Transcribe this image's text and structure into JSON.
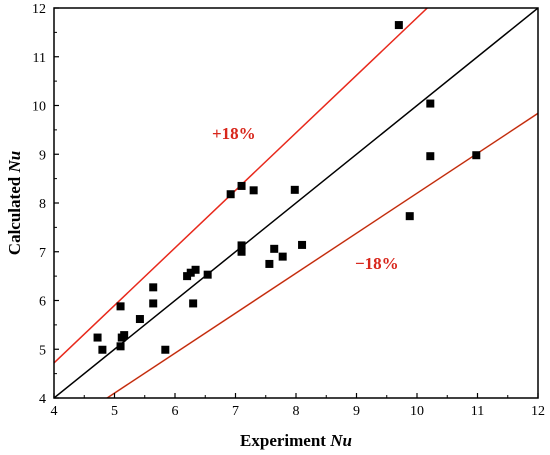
{
  "chart_data": {
    "type": "scatter",
    "xlabel": "Experiment",
    "xlabel_italic": "Nu",
    "ylabel": "Calculated",
    "ylabel_italic": "Nu",
    "xlim": [
      4,
      12
    ],
    "ylim": [
      4,
      12
    ],
    "xticks": [
      "4",
      "5",
      "6",
      "7",
      "8",
      "9",
      "10",
      "11",
      "12"
    ],
    "yticks": [
      "4",
      "5",
      "6",
      "7",
      "8",
      "9",
      "10",
      "11",
      "12"
    ],
    "grid": false,
    "points": [
      {
        "x": 4.72,
        "y": 5.24
      },
      {
        "x": 4.8,
        "y": 4.99
      },
      {
        "x": 5.1,
        "y": 5.88
      },
      {
        "x": 5.1,
        "y": 5.06
      },
      {
        "x": 5.12,
        "y": 5.24
      },
      {
        "x": 5.16,
        "y": 5.29
      },
      {
        "x": 5.42,
        "y": 5.62
      },
      {
        "x": 5.64,
        "y": 6.27
      },
      {
        "x": 5.64,
        "y": 5.94
      },
      {
        "x": 5.84,
        "y": 4.99
      },
      {
        "x": 6.2,
        "y": 6.5
      },
      {
        "x": 6.26,
        "y": 6.57
      },
      {
        "x": 6.3,
        "y": 5.94
      },
      {
        "x": 6.34,
        "y": 6.63
      },
      {
        "x": 6.54,
        "y": 6.53
      },
      {
        "x": 6.92,
        "y": 8.18
      },
      {
        "x": 7.1,
        "y": 8.35
      },
      {
        "x": 7.1,
        "y": 7.13
      },
      {
        "x": 7.1,
        "y": 7.0
      },
      {
        "x": 7.3,
        "y": 8.26
      },
      {
        "x": 7.56,
        "y": 6.75
      },
      {
        "x": 7.64,
        "y": 7.06
      },
      {
        "x": 7.78,
        "y": 6.9
      },
      {
        "x": 7.98,
        "y": 8.27
      },
      {
        "x": 8.1,
        "y": 7.14
      },
      {
        "x": 9.7,
        "y": 11.65
      },
      {
        "x": 9.88,
        "y": 7.73
      },
      {
        "x": 10.22,
        "y": 10.04
      },
      {
        "x": 10.22,
        "y": 8.96
      },
      {
        "x": 10.98,
        "y": 8.98
      }
    ],
    "reference_lines": [
      {
        "label": "",
        "slope": 1.0,
        "color": "#000000"
      },
      {
        "label": "+18%",
        "slope": 1.18,
        "color": "#e8291c"
      },
      {
        "label": "−18%",
        "slope": 0.82,
        "color": "#e8291c"
      }
    ],
    "marker_color": "#000000",
    "annotation_color": "#d8261b",
    "lower_line_inner_color": "#7a4a00"
  }
}
